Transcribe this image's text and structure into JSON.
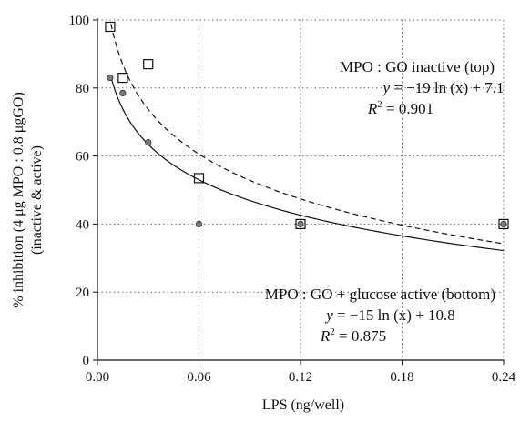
{
  "chart_data": {
    "type": "scatter",
    "xlabel": "LPS (ng/well)",
    "ylabel_line1": "% inhibition (4 μg MPO : 0.8 μgGO)",
    "ylabel_line2": "(inactive & active)",
    "xlim": [
      0,
      0.24
    ],
    "ylim": [
      0,
      100
    ],
    "xticks": [
      0.0,
      0.06,
      0.12,
      0.18,
      0.24
    ],
    "xtick_labels": [
      "0.00",
      "0.06",
      "0.12",
      "0.18",
      "0.24"
    ],
    "yticks": [
      0,
      20,
      40,
      60,
      80,
      100
    ],
    "ytick_labels": [
      "0",
      "20",
      "40",
      "60",
      "80",
      "100"
    ],
    "grid": "dotted",
    "series": [
      {
        "marker": "open-square",
        "color": "#111111",
        "points": [
          {
            "x": 0.0075,
            "y": 98.0
          },
          {
            "x": 0.015,
            "y": 83.0
          },
          {
            "x": 0.03,
            "y": 87.0
          },
          {
            "x": 0.06,
            "y": 53.5
          },
          {
            "x": 0.12,
            "y": 40.0
          },
          {
            "x": 0.24,
            "y": 40.0
          }
        ],
        "fit": {
          "style": "dashed",
          "a": -19,
          "b": 7.1,
          "x_from": 0.008,
          "x_to": 0.24
        }
      },
      {
        "marker": "filled-circle",
        "color": "#7a7a7a",
        "points": [
          {
            "x": 0.0075,
            "y": 83.0
          },
          {
            "x": 0.015,
            "y": 78.5
          },
          {
            "x": 0.03,
            "y": 64.0
          },
          {
            "x": 0.06,
            "y": 40.0
          },
          {
            "x": 0.12,
            "y": 40.0
          },
          {
            "x": 0.24,
            "y": 40.0
          }
        ],
        "fit": {
          "style": "solid",
          "a": -15,
          "b": 10.8,
          "x_from": 0.008,
          "x_to": 0.24
        }
      }
    ],
    "annotations": {
      "top": {
        "title": "MPO : GO inactive (top)",
        "eq_y": "y",
        "eq_rest": " = −19 ln (x) + 7.1",
        "r2_label": "R",
        "r2_value": " = 0.901"
      },
      "bottom": {
        "title": "MPO : GO + glucose active (bottom)",
        "eq_y": "y",
        "eq_rest": " = −15 ln (x) + 10.8",
        "r2_label": "R",
        "r2_value": " = 0.875"
      }
    }
  }
}
